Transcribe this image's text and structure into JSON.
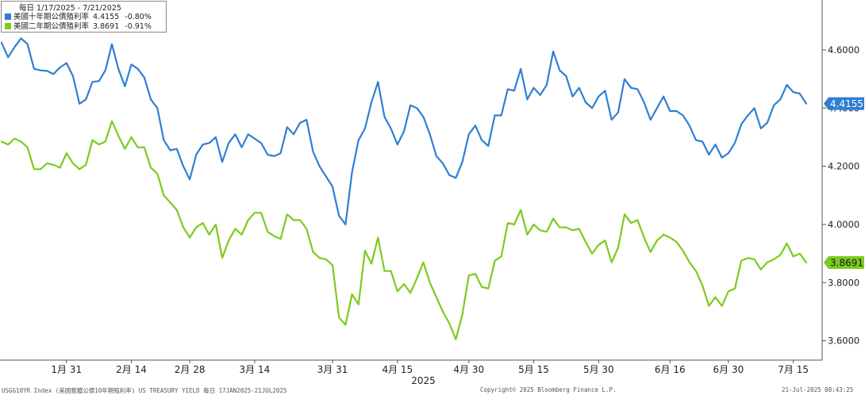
{
  "legend": {
    "title": "每日 1/17/2025 - 7/21/2025",
    "rows": [
      {
        "name": "美國十年期公債殖利率",
        "value": "4.4155",
        "change": "-0.80%",
        "color": "#2f7fd4"
      },
      {
        "name": "美國二年期公債殖利率",
        "value": "3.8691",
        "change": "-0.91%",
        "color": "#7ccb1e"
      }
    ]
  },
  "footer": {
    "left": "USGG10YR Index (美國整體公債10年期殖利率) US TREASURY YIELD  每日 17JAN2025-21JUL2025",
    "center": "Copyright© 2025 Bloomberg Finance L.P.",
    "right": "21-Jul-2025 08:43:25"
  },
  "chart_data": {
    "type": "line",
    "ylim": [
      3.55,
      4.75
    ],
    "y_ticks": [
      "4.6000",
      "4.4000",
      "4.2000",
      "4.0000",
      "3.8000",
      "3.6000"
    ],
    "y_tick_values": [
      4.6,
      4.4,
      4.2,
      4.0,
      3.8,
      3.6
    ],
    "x_tick_labels": [
      "1月 31",
      "2月 14",
      "2月 28",
      "3月 14",
      "3月 31",
      "4月 15",
      "4月 30",
      "5月 15",
      "5月 30",
      "6月 16",
      "6月 30",
      "7月 15"
    ],
    "x_tick_index": [
      10,
      20,
      29,
      39,
      51,
      61,
      72,
      82,
      92,
      103,
      112,
      122
    ],
    "year_label": "2025",
    "year_label_index": 65,
    "grid": false,
    "series": [
      {
        "name": "美國十年期公債殖利率",
        "color": "#2f7fd4",
        "last_label": "4.4155",
        "values": [
          4.625,
          4.575,
          4.61,
          4.64,
          4.62,
          4.535,
          4.53,
          4.528,
          4.517,
          4.54,
          4.555,
          4.51,
          4.415,
          4.43,
          4.49,
          4.493,
          4.53,
          4.62,
          4.535,
          4.475,
          4.55,
          4.535,
          4.505,
          4.43,
          4.4,
          4.29,
          4.255,
          4.26,
          4.2,
          4.155,
          4.24,
          4.275,
          4.28,
          4.3,
          4.215,
          4.28,
          4.31,
          4.265,
          4.31,
          4.295,
          4.28,
          4.24,
          4.235,
          4.245,
          4.335,
          4.31,
          4.35,
          4.36,
          4.25,
          4.2,
          4.165,
          4.13,
          4.03,
          4.0,
          4.18,
          4.29,
          4.33,
          4.42,
          4.49,
          4.37,
          4.33,
          4.275,
          4.32,
          4.41,
          4.4,
          4.37,
          4.31,
          4.235,
          4.21,
          4.17,
          4.16,
          4.215,
          4.31,
          4.34,
          4.29,
          4.27,
          4.375,
          4.375,
          4.465,
          4.46,
          4.535,
          4.43,
          4.47,
          4.445,
          4.48,
          4.595,
          4.53,
          4.51,
          4.44,
          4.47,
          4.42,
          4.4,
          4.44,
          4.46,
          4.36,
          4.385,
          4.5,
          4.47,
          4.465,
          4.42,
          4.36,
          4.4,
          4.44,
          4.39,
          4.39,
          4.375,
          4.34,
          4.29,
          4.285,
          4.24,
          4.275,
          4.23,
          4.245,
          4.28,
          4.345,
          4.375,
          4.4,
          4.33,
          4.35,
          4.41,
          4.43,
          4.48,
          4.455,
          4.45,
          4.4155
        ]
      },
      {
        "name": "美國二年期公債殖利率",
        "color": "#7ccb1e",
        "last_label": "3.8691",
        "values": [
          4.285,
          4.275,
          4.295,
          4.285,
          4.265,
          4.19,
          4.19,
          4.21,
          4.205,
          4.195,
          4.245,
          4.21,
          4.19,
          4.205,
          4.29,
          4.275,
          4.285,
          4.355,
          4.305,
          4.26,
          4.3,
          4.265,
          4.265,
          4.195,
          4.175,
          4.1,
          4.075,
          4.05,
          3.99,
          3.955,
          3.99,
          4.005,
          3.965,
          4.0,
          3.885,
          3.945,
          3.985,
          3.965,
          4.015,
          4.04,
          4.04,
          3.975,
          3.96,
          3.95,
          4.035,
          4.015,
          4.015,
          3.985,
          3.905,
          3.885,
          3.88,
          3.86,
          3.68,
          3.655,
          3.76,
          3.725,
          3.91,
          3.865,
          3.955,
          3.84,
          3.84,
          3.77,
          3.795,
          3.765,
          3.815,
          3.87,
          3.8,
          3.75,
          3.7,
          3.66,
          3.605,
          3.69,
          3.825,
          3.83,
          3.785,
          3.78,
          3.875,
          3.89,
          4.005,
          4.0,
          4.05,
          3.965,
          4.0,
          3.98,
          3.975,
          4.02,
          3.99,
          3.99,
          3.98,
          3.985,
          3.94,
          3.9,
          3.93,
          3.945,
          3.87,
          3.92,
          4.035,
          4.005,
          4.015,
          3.955,
          3.905,
          3.945,
          3.965,
          3.955,
          3.94,
          3.91,
          3.87,
          3.84,
          3.79,
          3.72,
          3.75,
          3.72,
          3.77,
          3.78,
          3.875,
          3.885,
          3.88,
          3.845,
          3.87,
          3.88,
          3.895,
          3.935,
          3.89,
          3.9,
          3.8691
        ]
      }
    ]
  }
}
